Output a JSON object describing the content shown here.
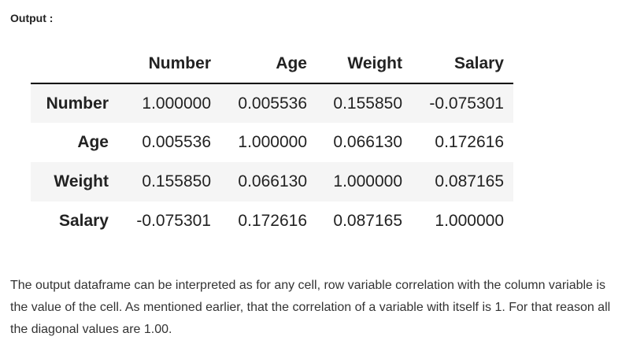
{
  "output_label": "Output :",
  "table": {
    "columns": [
      "Number",
      "Age",
      "Weight",
      "Salary"
    ],
    "rows": [
      {
        "index": "Number",
        "values": [
          "1.000000",
          "0.005536",
          "0.155850",
          "-0.075301"
        ]
      },
      {
        "index": "Age",
        "values": [
          "0.005536",
          "1.000000",
          "0.066130",
          "0.172616"
        ]
      },
      {
        "index": "Weight",
        "values": [
          "0.155850",
          "0.066130",
          "1.000000",
          "0.087165"
        ]
      },
      {
        "index": "Salary",
        "values": [
          "-0.075301",
          "0.172616",
          "0.087165",
          "1.000000"
        ]
      }
    ]
  },
  "paragraph": "The output dataframe can be interpreted as for any cell, row variable correlation with the column variable is the value of the cell. As mentioned earlier, that the correlation of a variable with itself is 1. For that reason all the diagonal values are 1.00."
}
